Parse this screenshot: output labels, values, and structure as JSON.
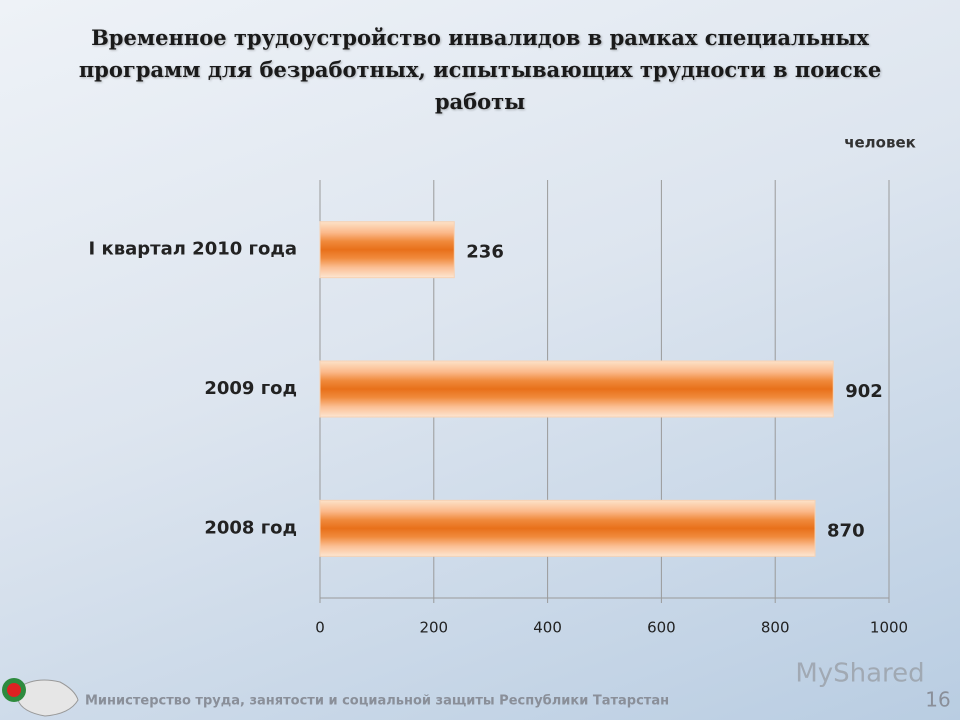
{
  "chart_data": {
    "type": "bar",
    "orientation": "horizontal",
    "title": "Временное трудоустройство инвалидов в рамках  специальных программ для безработных, испытывающих трудности в поиске работы",
    "unit_label": "человек",
    "categories": [
      "I квартал 2010 года",
      "2009 год",
      "2008 год"
    ],
    "values": [
      236,
      902,
      870
    ],
    "color": "#e8701a",
    "xlim": [
      0,
      1000
    ],
    "xticks": [
      0,
      200,
      400,
      600,
      800,
      1000
    ],
    "grid": true
  },
  "footer": {
    "text": "Министерство труда, занятости и социальной защиты Республики Татарстан",
    "page_number": "16",
    "watermark": "MyShared"
  }
}
